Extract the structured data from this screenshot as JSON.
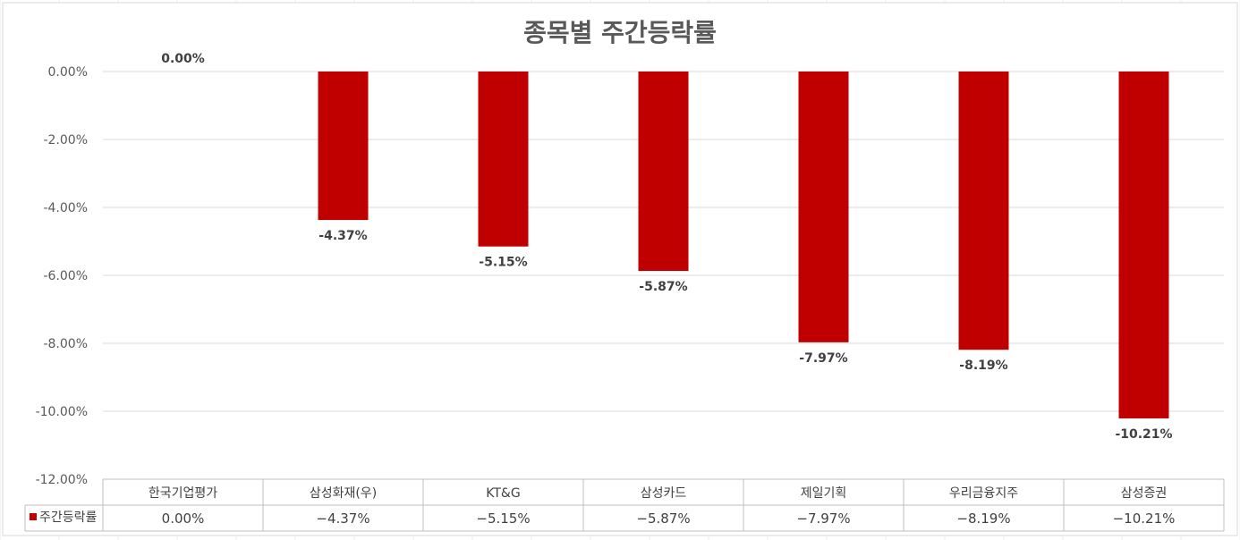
{
  "chart_data": {
    "type": "bar",
    "title": "종목별 주간등락률",
    "categories": [
      "한국기업평가",
      "삼성화재(우)",
      "KT&G",
      "삼성카드",
      "제일기획",
      "우리금융지주",
      "삼성증권"
    ],
    "series": [
      {
        "name": "주간등락률",
        "color": "#C00000",
        "values": [
          0.0,
          -4.37,
          -5.15,
          -5.87,
          -7.97,
          -8.19,
          -10.21
        ],
        "data_labels": [
          "0.00%",
          "-4.37%",
          "-5.15%",
          "-5.87%",
          "-7.97%",
          "-8.19%",
          "-10.21%"
        ],
        "table_values": [
          "0.00%",
          "−4.37%",
          "−5.15%",
          "−5.87%",
          "−7.97%",
          "−8.19%",
          "−10.21%"
        ]
      }
    ],
    "ylim": [
      -12,
      0
    ],
    "yticks": [
      0,
      -2,
      -4,
      -6,
      -8,
      -10,
      -12
    ],
    "ytick_labels": [
      "0.00%",
      "-2.00%",
      "-4.00%",
      "-6.00%",
      "-8.00%",
      "-10.00%",
      "-12.00%"
    ],
    "xlabel": "",
    "ylabel": "",
    "grid": true,
    "legend": "data-table-left",
    "data_table": true
  }
}
